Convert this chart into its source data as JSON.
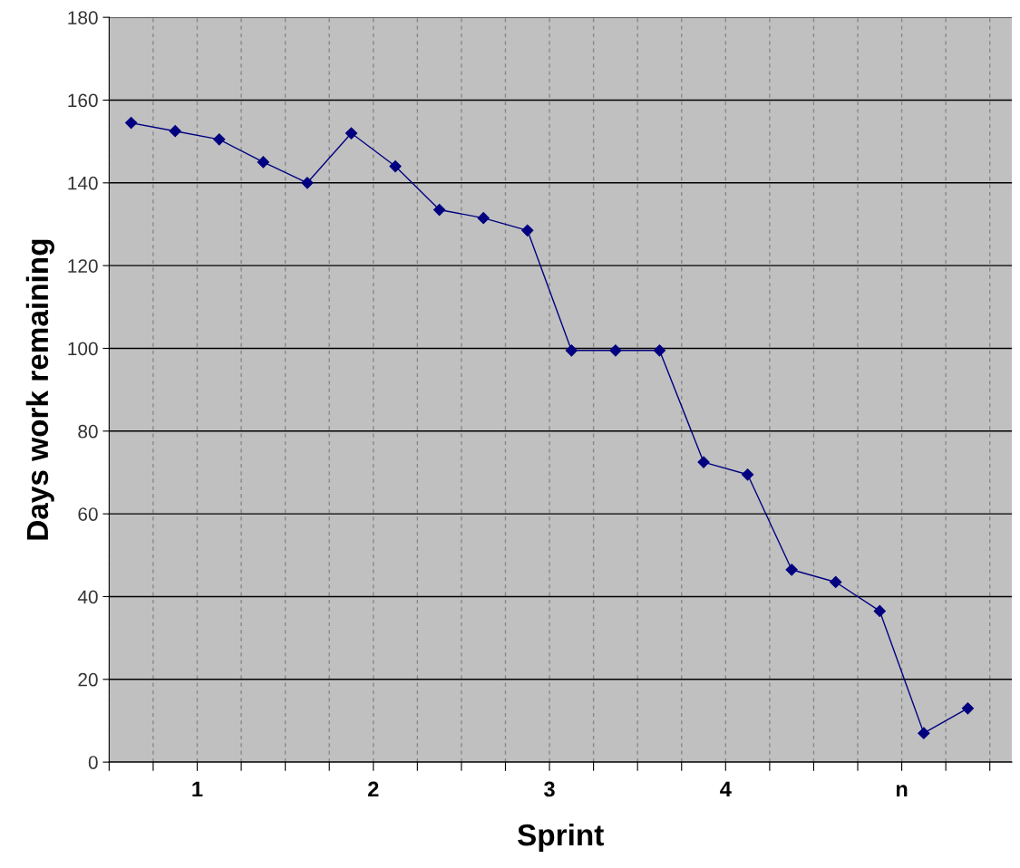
{
  "chart_data": {
    "type": "line",
    "xlabel": "Sprint",
    "ylabel": "Days work remaining",
    "x": [
      0.625,
      0.875,
      1.125,
      1.375,
      1.625,
      1.875,
      2.125,
      2.375,
      2.625,
      2.875,
      3.125,
      3.375,
      3.625,
      3.875,
      4.125,
      4.375,
      4.625,
      4.875,
      5.125,
      5.375
    ],
    "series": [
      {
        "color": "#000080",
        "values": [
          154.5,
          152.5,
          150.5,
          145,
          140,
          152,
          144,
          133.5,
          131.5,
          128.5,
          99.5,
          99.5,
          99.5,
          72.5,
          69.5,
          46.5,
          43.5,
          36.5,
          7,
          13
        ]
      }
    ],
    "xlim": [
      0.5,
      5.625
    ],
    "xticks": [
      {
        "value": 0.5,
        "label": null
      },
      {
        "value": 0.75,
        "label": null
      },
      1,
      {
        "value": 1.25,
        "label": null
      },
      {
        "value": 1.5,
        "label": null
      },
      {
        "value": 1.75,
        "label": null
      },
      2,
      {
        "value": 2.25,
        "label": null
      },
      {
        "value": 2.5,
        "label": null
      },
      {
        "value": 2.75,
        "label": null
      },
      3,
      {
        "value": 3.25,
        "label": null
      },
      {
        "value": 3.5,
        "label": null
      },
      {
        "value": 3.75,
        "label": null
      },
      4,
      {
        "value": 4.25,
        "label": null
      },
      {
        "value": 4.5,
        "label": null
      },
      {
        "value": 4.75,
        "label": null
      },
      {
        "value": 5,
        "label": "n"
      },
      {
        "value": 5.25,
        "label": null
      },
      {
        "value": 5.5,
        "label": null
      }
    ],
    "ylim": [
      0,
      180
    ],
    "yticks": [
      0,
      20,
      40,
      60,
      80,
      100,
      120,
      140,
      160,
      180
    ],
    "grid": true,
    "marker": "diamond",
    "line_style": "solid"
  }
}
